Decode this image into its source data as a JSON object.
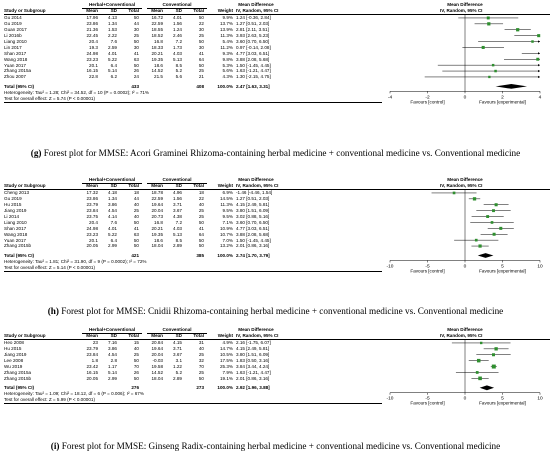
{
  "plots": [
    {
      "id": "g",
      "caption_tag": "(g)",
      "caption": "Forest plot for MMSE: Acori Graminei Rhizoma-containing herbal medicine + conventional medicine vs. Conventional medicine",
      "headers": {
        "group1": "Herbal+Conventional",
        "group2": "Conventional",
        "study": "Study or Subgroup",
        "mean": "Mean",
        "sd": "SD",
        "total": "Total",
        "weight": "Weight",
        "md_title": "Mean Difference",
        "md_sub": "IV, Random, 95% CI"
      },
      "studies": [
        {
          "name": "Gu 2014",
          "m1": "17.96",
          "sd1": "4.13",
          "n1": "50",
          "m2": "16.72",
          "sd2": "4.01",
          "n2": "50",
          "w": "9.9%",
          "ci": "1.24 [-0.36, 2.84]",
          "md": 1.24,
          "lo": -0.36,
          "hi": 2.84
        },
        {
          "name": "Gu 2019",
          "m1": "23.86",
          "sd1": "1.34",
          "n1": "44",
          "m2": "22.59",
          "sd2": "1.56",
          "n2": "22",
          "w": "13.7%",
          "ci": "1.27 [0.51, 2.03]",
          "md": 1.27,
          "lo": 0.51,
          "hi": 2.03
        },
        {
          "name": "Guan 2017",
          "m1": "21.36",
          "sd1": "1.53",
          "n1": "30",
          "m2": "18.55",
          "sd2": "1.24",
          "n2": "30",
          "w": "13.9%",
          "ci": "2.81 [2.11, 3.51]",
          "md": 2.81,
          "lo": 2.11,
          "hi": 3.51
        },
        {
          "name": "Li 2016b",
          "m1": "22.45",
          "sd1": "2.22",
          "n1": "25",
          "m2": "18.52",
          "sd2": "2.46",
          "n2": "25",
          "w": "11.3%",
          "ci": "3.93 [2.63, 5.23]",
          "md": 3.93,
          "lo": 2.63,
          "hi": 5.23
        },
        {
          "name": "Liang 2010",
          "m1": "20.4",
          "sd1": "7.6",
          "n1": "50",
          "m2": "16.8",
          "sd2": "7.2",
          "n2": "50",
          "w": "5.4%",
          "ci": "3.60 [0.70, 6.50]",
          "md": 3.6,
          "lo": 0.7,
          "hi": 6.5
        },
        {
          "name": "Lin 2017",
          "m1": "19.3",
          "sd1": "2.59",
          "n1": "30",
          "m2": "18.33",
          "sd2": "1.73",
          "n2": "30",
          "w": "11.2%",
          "ci": "0.97 [-0.14, 2.08]",
          "md": 0.97,
          "lo": -0.14,
          "hi": 2.08
        },
        {
          "name": "Shan 2017",
          "m1": "24.98",
          "sd1": "4.01",
          "n1": "41",
          "m2": "20.21",
          "sd2": "4.03",
          "n2": "41",
          "w": "9.3%",
          "ci": "4.77 [3.03, 6.51]",
          "md": 4.77,
          "lo": 3.03,
          "hi": 6.51
        },
        {
          "name": "Wang 2018",
          "m1": "23.23",
          "sd1": "5.22",
          "n1": "63",
          "m2": "19.35",
          "sd2": "5.13",
          "n2": "64",
          "w": "9.8%",
          "ci": "3.88 [2.08, 5.68]",
          "md": 3.88,
          "lo": 2.08,
          "hi": 5.68
        },
        {
          "name": "Yuan 2017",
          "m1": "20.1",
          "sd1": "6.4",
          "n1": "50",
          "m2": "18.6",
          "sd2": "8.5",
          "n2": "50",
          "w": "5.3%",
          "ci": "1.50 [-1.45, 4.45]",
          "md": 1.5,
          "lo": -1.45,
          "hi": 4.45
        },
        {
          "name": "Zhang 2015a",
          "m1": "16.15",
          "sd1": "5.14",
          "n1": "26",
          "m2": "14.52",
          "sd2": "5.2",
          "n2": "25",
          "w": "5.6%",
          "ci": "1.63 [-1.21, 4.47]",
          "md": 1.63,
          "lo": -1.21,
          "hi": 4.47
        },
        {
          "name": "Zhou 2007",
          "m1": "22.8",
          "sd1": "6.2",
          "n1": "24",
          "m2": "21.5",
          "sd2": "5.6",
          "n2": "21",
          "w": "4.3%",
          "ci": "1.30 [-2.15, 4.75]",
          "md": 1.3,
          "lo": -2.15,
          "hi": 4.75
        }
      ],
      "total": {
        "label": "Total (95% CI)",
        "n1": "433",
        "n2": "408",
        "w": "100.0%",
        "ci": "2.47 [1.63, 3.31]",
        "md": 2.47,
        "lo": 1.63,
        "hi": 3.31
      },
      "heterogeneity": "Heterogeneity: Tau² = 1.28; Chi² = 34.52, df = 10 (P = 0.0002); I² = 71%",
      "overall": "Test for overall effect: Z = 5.74 (P < 0.00001)",
      "axis": {
        "min": -4,
        "max": 4,
        "ticks": [
          -4,
          -2,
          0,
          2,
          4
        ]
      },
      "favours_left": "Favours [control]",
      "favours_right": "Favours [experimental]"
    },
    {
      "id": "h",
      "caption_tag": "(h)",
      "caption": "Forest plot for MMSE: Cnidii Rhizoma-containing herbal medicine + conventional medicine vs. Conventional medicine",
      "headers": {
        "group1": "Herbal+Conventional",
        "group2": "Conventional",
        "study": "Study or Subgroup",
        "mean": "Mean",
        "sd": "SD",
        "total": "Total",
        "weight": "Weight",
        "md_title": "Mean Difference",
        "md_sub": "IV, Random, 95% CI"
      },
      "studies": [
        {
          "name": "Cheng 2013",
          "m1": "17.32",
          "sd1": "4.18",
          "n1": "18",
          "m2": "18.78",
          "sd2": "4.96",
          "n2": "18",
          "w": "6.9%",
          "ci": "-1.46 [-4.46, 1.54]",
          "md": -1.46,
          "lo": -4.46,
          "hi": 1.54
        },
        {
          "name": "Gu 2019",
          "m1": "23.86",
          "sd1": "1.34",
          "n1": "44",
          "m2": "22.59",
          "sd2": "1.56",
          "n2": "22",
          "w": "14.5%",
          "ci": "1.27 [0.51, 2.03]",
          "md": 1.27,
          "lo": 0.51,
          "hi": 2.03
        },
        {
          "name": "Hu 2015",
          "m1": "23.79",
          "sd1": "3.86",
          "n1": "40",
          "m2": "19.64",
          "sd2": "3.71",
          "n2": "40",
          "w": "11.3%",
          "ci": "4.15 [2.49, 5.81]",
          "md": 4.15,
          "lo": 2.49,
          "hi": 5.81
        },
        {
          "name": "Jiang 2019",
          "m1": "23.84",
          "sd1": "4.54",
          "n1": "25",
          "m2": "20.04",
          "sd2": "3.67",
          "n2": "25",
          "w": "9.5%",
          "ci": "3.80 [1.51, 6.09]",
          "md": 3.8,
          "lo": 1.51,
          "hi": 6.09
        },
        {
          "name": "Li 2014",
          "m1": "23.75",
          "sd1": "4.14",
          "n1": "40",
          "m2": "20.73",
          "sd2": "4.38",
          "n2": "25",
          "w": "9.5%",
          "ci": "3.02 [0.88, 5.16]",
          "md": 3.02,
          "lo": 0.88,
          "hi": 5.16
        },
        {
          "name": "Liang 2010",
          "m1": "20.4",
          "sd1": "7.6",
          "n1": "50",
          "m2": "16.8",
          "sd2": "7.2",
          "n2": "50",
          "w": "7.1%",
          "ci": "3.60 [0.70, 6.50]",
          "md": 3.6,
          "lo": 0.7,
          "hi": 6.5
        },
        {
          "name": "Shan 2017",
          "m1": "24.98",
          "sd1": "4.01",
          "n1": "41",
          "m2": "20.21",
          "sd2": "4.03",
          "n2": "41",
          "w": "10.9%",
          "ci": "4.77 [3.03, 6.51]",
          "md": 4.77,
          "lo": 3.03,
          "hi": 6.51
        },
        {
          "name": "Wang 2018",
          "m1": "23.23",
          "sd1": "5.22",
          "n1": "63",
          "m2": "19.35",
          "sd2": "5.13",
          "n2": "64",
          "w": "10.7%",
          "ci": "3.88 [2.08, 5.68]",
          "md": 3.88,
          "lo": 2.08,
          "hi": 5.68
        },
        {
          "name": "Yuan 2017",
          "m1": "20.1",
          "sd1": "6.4",
          "n1": "50",
          "m2": "18.6",
          "sd2": "8.5",
          "n2": "50",
          "w": "7.0%",
          "ci": "1.50 [-1.45, 4.45]",
          "md": 1.5,
          "lo": -1.45,
          "hi": 4.45
        },
        {
          "name": "Zhang 2015b",
          "m1": "20.05",
          "sd1": "2.99",
          "n1": "50",
          "m2": "18.04",
          "sd2": "2.89",
          "n2": "50",
          "w": "13.2%",
          "ci": "2.01 [0.86, 3.16]",
          "md": 2.01,
          "lo": 0.86,
          "hi": 3.16
        }
      ],
      "total": {
        "label": "Total (95% CI)",
        "n1": "421",
        "n2": "385",
        "w": "100.0%",
        "ci": "2.74 [1.70, 3.79]",
        "md": 2.74,
        "lo": 1.7,
        "hi": 3.79
      },
      "heterogeneity": "Heterogeneity: Tau² = 1.81; Chi² = 31.90, df = 9 (P = 0.0002); I² = 72%",
      "overall": "Test for overall effect: Z = 5.14 (P < 0.00001)",
      "axis": {
        "min": -10,
        "max": 10,
        "ticks": [
          -10,
          -5,
          0,
          5,
          10
        ]
      },
      "favours_left": "Favours [control]",
      "favours_right": "Favours [experimental]"
    },
    {
      "id": "i",
      "caption_tag": "(i)",
      "caption": "Forest plot for MMSE: Ginseng Radix-containing herbal medicine + conventional medicine vs. Conventional medicine",
      "headers": {
        "group1": "Herbal+Conventional",
        "group2": "Conventional",
        "study": "Study or Subgroup",
        "mean": "Mean",
        "sd": "SD",
        "total": "Total",
        "weight": "Weight",
        "md_title": "Mean Difference",
        "md_sub": "IV, Random, 95% CI"
      },
      "studies": [
        {
          "name": "Heo 2008",
          "m1": "23",
          "sd1": "7.16",
          "n1": "15",
          "m2": "20.84",
          "sd2": "4.15",
          "n2": "31",
          "w": "4.9%",
          "ci": "2.16 [-1.75, 6.07]",
          "md": 2.16,
          "lo": -1.75,
          "hi": 6.07
        },
        {
          "name": "Hu 2015",
          "m1": "23.79",
          "sd1": "3.86",
          "n1": "40",
          "m2": "19.64",
          "sd2": "3.71",
          "n2": "40",
          "w": "14.7%",
          "ci": "4.15 [2.49, 5.81]",
          "md": 4.15,
          "lo": 2.49,
          "hi": 5.81
        },
        {
          "name": "Jiang 2019",
          "m1": "23.84",
          "sd1": "4.54",
          "n1": "25",
          "m2": "20.04",
          "sd2": "3.67",
          "n2": "25",
          "w": "10.5%",
          "ci": "3.80 [1.51, 6.09]",
          "md": 3.8,
          "lo": 1.51,
          "hi": 6.09
        },
        {
          "name": "Lee 2008",
          "m1": "1.8",
          "sd1": "2.8",
          "n1": "50",
          "m2": "-0.03",
          "sd2": "3.1",
          "n2": "32",
          "w": "17.5%",
          "ci": "1.83 [0.50, 3.16]",
          "md": 1.83,
          "lo": 0.5,
          "hi": 3.16
        },
        {
          "name": "Wu 2019",
          "m1": "23.42",
          "sd1": "1.17",
          "n1": "70",
          "m2": "19.58",
          "sd2": "1.22",
          "n2": "70",
          "w": "25.3%",
          "ci": "3.84 [3.44, 4.24]",
          "md": 3.84,
          "lo": 3.44,
          "hi": 4.24
        },
        {
          "name": "Zhang 2015a",
          "m1": "16.15",
          "sd1": "5.14",
          "n1": "26",
          "m2": "14.52",
          "sd2": "5.2",
          "n2": "25",
          "w": "7.9%",
          "ci": "1.63 [-1.21, 4.47]",
          "md": 1.63,
          "lo": -1.21,
          "hi": 4.47
        },
        {
          "name": "Zhang 2015b",
          "m1": "20.05",
          "sd1": "2.99",
          "n1": "50",
          "m2": "18.04",
          "sd2": "2.89",
          "n2": "50",
          "w": "19.1%",
          "ci": "2.01 [0.86, 3.16]",
          "md": 2.01,
          "lo": 0.86,
          "hi": 3.16
        }
      ],
      "total": {
        "label": "Total (95% CI)",
        "n1": "276",
        "n2": "273",
        "w": "100.0%",
        "ci": "2.92 [1.96, 3.88]",
        "md": 2.92,
        "lo": 1.96,
        "hi": 3.88
      },
      "heterogeneity": "Heterogeneity: Tau² = 1.09; Chi² = 18.12, df = 6 (P = 0.006); I² = 67%",
      "overall": "Test for overall effect: Z = 5.99 (P < 0.00001)",
      "axis": {
        "min": -10,
        "max": 10,
        "ticks": [
          -10,
          -5,
          0,
          5,
          10
        ]
      },
      "favours_left": "Favours [control]",
      "favours_right": "Favours [experimental]"
    }
  ],
  "colors": {
    "square": "#2f8f2f",
    "diamond": "#000000",
    "line": "#000000"
  }
}
